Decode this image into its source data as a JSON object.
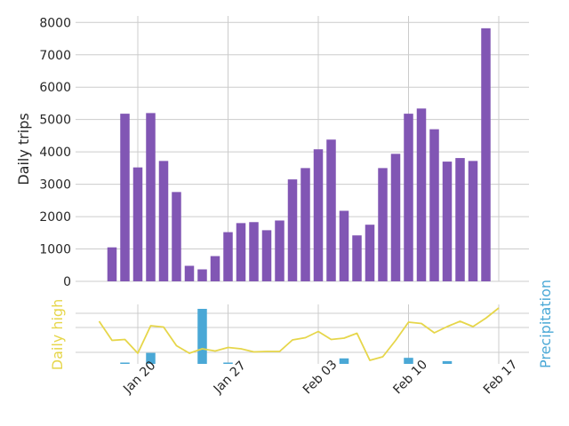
{
  "chart_data": [
    {
      "type": "bar",
      "ylabel": "Daily trips",
      "ylim": [
        0,
        8200
      ],
      "yticks": [
        "0",
        "1000",
        "2000",
        "3000",
        "4000",
        "5000",
        "6000",
        "7000",
        "8000"
      ],
      "xticks": [
        "Jan 20",
        "Jan 27",
        "Feb 03",
        "Feb 10",
        "Feb 17"
      ],
      "grid": true,
      "series": [
        {
          "color": "#8156b4",
          "x": [
            "2019-01-18",
            "2019-01-19",
            "2019-01-20",
            "2019-01-21",
            "2019-01-22",
            "2019-01-23",
            "2019-01-24",
            "2019-01-25",
            "2019-01-26",
            "2019-01-27",
            "2019-01-28",
            "2019-01-29",
            "2019-01-30",
            "2019-01-31",
            "2019-02-01",
            "2019-02-02",
            "2019-02-03",
            "2019-02-04",
            "2019-02-05",
            "2019-02-06",
            "2019-02-07",
            "2019-02-08",
            "2019-02-09",
            "2019-02-10",
            "2019-02-11",
            "2019-02-12",
            "2019-02-13",
            "2019-02-14",
            "2019-02-15",
            "2019-02-16",
            "2019-02-17"
          ],
          "values": [
            1050,
            5180,
            3520,
            5200,
            3720,
            2760,
            480,
            370,
            780,
            1520,
            1800,
            1830,
            1580,
            1880,
            3150,
            3500,
            4080,
            4380,
            2180,
            1420,
            1750,
            3500,
            3940,
            5180,
            5340,
            4700,
            3700,
            3810,
            3720,
            7820,
            0
          ]
        }
      ]
    },
    {
      "type": "line",
      "ylabel_left": "Daily high",
      "ylabel_right": "Precipitation",
      "xticks": [
        "Jan 20",
        "Jan 27",
        "Feb 03",
        "Feb 10",
        "Feb 17"
      ],
      "grid": true,
      "series": [
        {
          "color": "#e6d64a",
          "x": [
            "2019-01-17",
            "2019-01-18",
            "2019-01-19",
            "2019-01-20",
            "2019-01-21",
            "2019-01-22",
            "2019-01-23",
            "2019-01-24",
            "2019-01-25",
            "2019-01-26",
            "2019-01-27",
            "2019-01-28",
            "2019-01-29",
            "2019-01-30",
            "2019-01-31",
            "2019-02-01",
            "2019-02-02",
            "2019-02-03",
            "2019-02-04",
            "2019-02-05",
            "2019-02-06",
            "2019-02-07",
            "2019-02-08",
            "2019-02-09",
            "2019-02-10",
            "2019-02-11",
            "2019-02-12",
            "2019-02-13",
            "2019-02-14",
            "2019-02-15",
            "2019-02-16",
            "2019-02-17"
          ],
          "values": [
            0.7,
            0.27,
            0.29,
            -0.02,
            0.6,
            0.57,
            0.15,
            -0.02,
            0.08,
            0.03,
            0.11,
            0.08,
            0.01,
            0.02,
            0.02,
            0.28,
            0.33,
            0.47,
            0.29,
            0.32,
            0.43,
            -0.18,
            -0.1,
            0.27,
            0.68,
            0.65,
            0.44,
            0.58,
            0.7,
            0.58,
            0.77,
            1.0
          ]
        },
        {
          "color": "#4aa8d6",
          "x": [
            "2019-01-18",
            "2019-01-19",
            "2019-01-20",
            "2019-01-21",
            "2019-01-22",
            "2019-01-23",
            "2019-01-24",
            "2019-01-25",
            "2019-01-26",
            "2019-01-27",
            "2019-01-28",
            "2019-01-29",
            "2019-01-30",
            "2019-01-31",
            "2019-02-01",
            "2019-02-02",
            "2019-02-03",
            "2019-02-04",
            "2019-02-05",
            "2019-02-06",
            "2019-02-07",
            "2019-02-08",
            "2019-02-09",
            "2019-02-10",
            "2019-02-11",
            "2019-02-12",
            "2019-02-13",
            "2019-02-14",
            "2019-02-15",
            "2019-02-16",
            "2019-02-17"
          ],
          "values": [
            0,
            0.02,
            0,
            0.2,
            0,
            0,
            0,
            1.0,
            0,
            0.02,
            0,
            0,
            0,
            0,
            0,
            0,
            0,
            0,
            0.1,
            0,
            0,
            0,
            0,
            0.11,
            0,
            0,
            0.05,
            0,
            0,
            0,
            0
          ]
        }
      ]
    }
  ]
}
